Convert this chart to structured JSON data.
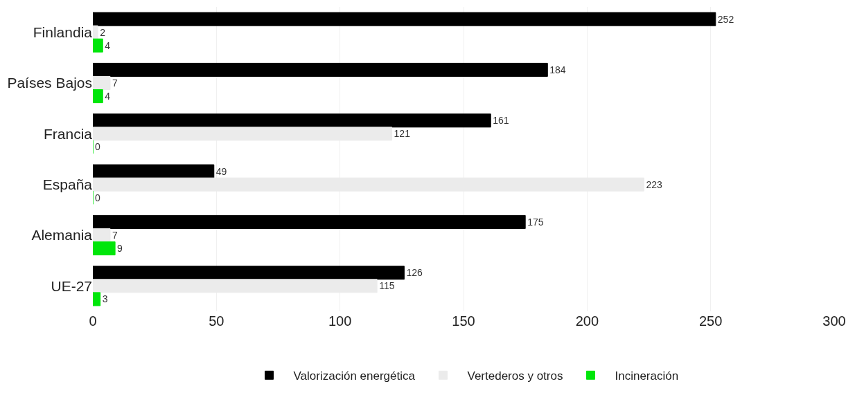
{
  "chart_data": {
    "type": "bar",
    "orientation": "horizontal",
    "categories": [
      "Finlandia",
      "Países Bajos",
      "Francia",
      "España",
      "Alemania",
      "UE-27"
    ],
    "series": [
      {
        "name": "Valorización energética",
        "color": "#000000",
        "values": [
          252,
          184,
          161,
          49,
          175,
          126
        ]
      },
      {
        "name": "Vertederos y otros",
        "color": "#ebebeb",
        "values": [
          2,
          7,
          121,
          223,
          7,
          115
        ]
      },
      {
        "name": "Incineración",
        "color": "#00e60a",
        "values": [
          4,
          4,
          0,
          0,
          9,
          3
        ]
      }
    ],
    "xlim": [
      0,
      300
    ],
    "xticks": [
      0,
      50,
      100,
      150,
      200,
      250,
      300
    ],
    "grid": "x",
    "legend": "bottom",
    "data_labels": true
  }
}
